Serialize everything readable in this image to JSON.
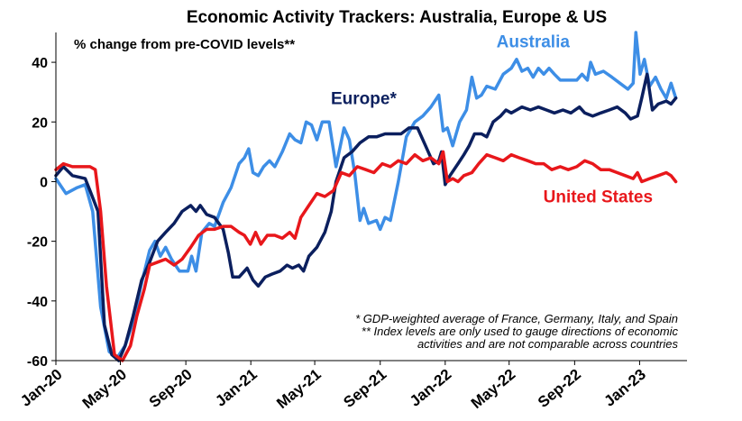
{
  "chart_data": {
    "type": "line",
    "title": "Economic Activity Trackers: Australia, Europe & US",
    "subtitle": "% change from pre-COVID levels**",
    "xlabel": "",
    "ylabel": "",
    "ylim": [
      -60,
      50
    ],
    "yticks": [
      40,
      20,
      0,
      -20,
      -40,
      -60
    ],
    "xlim": [
      "2020-01-01",
      "2023-03-31"
    ],
    "xticks": [
      "2020-01-01",
      "2020-05-01",
      "2020-09-01",
      "2021-01-01",
      "2021-05-01",
      "2021-09-01",
      "2022-01-01",
      "2022-05-01",
      "2022-09-01",
      "2023-01-01"
    ],
    "xtick_labels": [
      "Jan-20",
      "May-20",
      "Sep-20",
      "Jan-21",
      "May-21",
      "Sep-21",
      "Jan-22",
      "May-22",
      "Sep-22",
      "Jan-23"
    ],
    "grid": false,
    "legend": "inline labels",
    "notes": [
      "* GDP-weighted average of France, Germany, Italy, and Spain",
      "** Index levels are only used to gauge directions of economic",
      "activities and are not comparable across countries"
    ],
    "series": [
      {
        "name": "Australia",
        "color": "#3d8ee6",
        "label_at": [
          "2022-06-15",
          45
        ],
        "points": [
          [
            "2020-01-01",
            1
          ],
          [
            "2020-01-20",
            -4
          ],
          [
            "2020-02-10",
            -2
          ],
          [
            "2020-02-25",
            -1
          ],
          [
            "2020-03-10",
            -10
          ],
          [
            "2020-03-25",
            -42
          ],
          [
            "2020-04-10",
            -57
          ],
          [
            "2020-04-25",
            -59
          ],
          [
            "2020-05-10",
            -55
          ],
          [
            "2020-05-25",
            -47
          ],
          [
            "2020-06-10",
            -34
          ],
          [
            "2020-06-25",
            -23
          ],
          [
            "2020-07-05",
            -20
          ],
          [
            "2020-07-15",
            -25
          ],
          [
            "2020-07-25",
            -22
          ],
          [
            "2020-08-05",
            -26
          ],
          [
            "2020-08-20",
            -30
          ],
          [
            "2020-09-05",
            -30
          ],
          [
            "2020-09-12",
            -25
          ],
          [
            "2020-09-20",
            -30
          ],
          [
            "2020-10-01",
            -17
          ],
          [
            "2020-10-15",
            -14
          ],
          [
            "2020-10-25",
            -15
          ],
          [
            "2020-11-10",
            -7
          ],
          [
            "2020-11-25",
            -2
          ],
          [
            "2020-12-10",
            6
          ],
          [
            "2020-12-20",
            8
          ],
          [
            "2020-12-28",
            11
          ],
          [
            "2021-01-05",
            3
          ],
          [
            "2021-01-15",
            2
          ],
          [
            "2021-01-25",
            5
          ],
          [
            "2021-02-05",
            7
          ],
          [
            "2021-02-15",
            5
          ],
          [
            "2021-03-01",
            10
          ],
          [
            "2021-03-15",
            16
          ],
          [
            "2021-03-25",
            14
          ],
          [
            "2021-04-05",
            13
          ],
          [
            "2021-04-15",
            20
          ],
          [
            "2021-04-25",
            19
          ],
          [
            "2021-05-05",
            14
          ],
          [
            "2021-05-15",
            20
          ],
          [
            "2021-05-28",
            20
          ],
          [
            "2021-06-10",
            5
          ],
          [
            "2021-06-25",
            18
          ],
          [
            "2021-07-05",
            14
          ],
          [
            "2021-07-15",
            3
          ],
          [
            "2021-07-25",
            -13
          ],
          [
            "2021-08-01",
            -9
          ],
          [
            "2021-08-10",
            -14
          ],
          [
            "2021-08-25",
            -13
          ],
          [
            "2021-09-01",
            -16
          ],
          [
            "2021-09-10",
            -12
          ],
          [
            "2021-09-20",
            -13
          ],
          [
            "2021-10-05",
            0
          ],
          [
            "2021-10-20",
            15
          ],
          [
            "2021-11-05",
            20
          ],
          [
            "2021-11-20",
            22
          ],
          [
            "2021-12-05",
            25
          ],
          [
            "2021-12-20",
            29
          ],
          [
            "2021-12-28",
            17
          ],
          [
            "2022-01-05",
            18
          ],
          [
            "2022-01-15",
            12
          ],
          [
            "2022-01-28",
            20
          ],
          [
            "2022-02-10",
            24
          ],
          [
            "2022-02-20",
            35
          ],
          [
            "2022-03-01",
            28
          ],
          [
            "2022-03-10",
            29
          ],
          [
            "2022-03-20",
            32
          ],
          [
            "2022-04-05",
            31
          ],
          [
            "2022-04-20",
            36
          ],
          [
            "2022-05-05",
            38
          ],
          [
            "2022-05-15",
            41
          ],
          [
            "2022-05-25",
            37
          ],
          [
            "2022-06-05",
            38
          ],
          [
            "2022-06-15",
            35
          ],
          [
            "2022-06-25",
            38
          ],
          [
            "2022-07-05",
            36
          ],
          [
            "2022-07-15",
            38
          ],
          [
            "2022-07-25",
            36
          ],
          [
            "2022-08-05",
            34
          ],
          [
            "2022-08-20",
            34
          ],
          [
            "2022-09-05",
            34
          ],
          [
            "2022-09-15",
            36
          ],
          [
            "2022-09-25",
            34
          ],
          [
            "2022-10-01",
            40
          ],
          [
            "2022-10-10",
            36
          ],
          [
            "2022-10-25",
            37
          ],
          [
            "2022-11-10",
            35
          ],
          [
            "2022-11-25",
            33
          ],
          [
            "2022-12-10",
            31
          ],
          [
            "2022-12-20",
            33
          ],
          [
            "2022-12-25",
            50
          ],
          [
            "2023-01-02",
            36
          ],
          [
            "2023-01-10",
            41
          ],
          [
            "2023-01-20",
            32
          ],
          [
            "2023-01-31",
            35
          ],
          [
            "2023-02-10",
            31
          ],
          [
            "2023-02-20",
            28
          ],
          [
            "2023-03-01",
            33
          ],
          [
            "2023-03-10",
            28
          ]
        ]
      },
      {
        "name": "Europe*",
        "color": "#0b1f5e",
        "label_at": [
          "2021-08-01",
          26
        ],
        "points": [
          [
            "2020-01-01",
            2
          ],
          [
            "2020-01-15",
            5
          ],
          [
            "2020-02-01",
            2
          ],
          [
            "2020-02-25",
            1
          ],
          [
            "2020-03-05",
            -3
          ],
          [
            "2020-03-20",
            -10
          ],
          [
            "2020-04-01",
            -48
          ],
          [
            "2020-04-15",
            -58
          ],
          [
            "2020-04-28",
            -60
          ],
          [
            "2020-05-10",
            -55
          ],
          [
            "2020-05-25",
            -45
          ],
          [
            "2020-06-10",
            -33
          ],
          [
            "2020-06-25",
            -27
          ],
          [
            "2020-07-10",
            -20
          ],
          [
            "2020-07-25",
            -17
          ],
          [
            "2020-08-10",
            -14
          ],
          [
            "2020-08-25",
            -10
          ],
          [
            "2020-09-10",
            -8
          ],
          [
            "2020-09-20",
            -10
          ],
          [
            "2020-09-28",
            -8
          ],
          [
            "2020-10-10",
            -11
          ],
          [
            "2020-10-25",
            -12
          ],
          [
            "2020-11-10",
            -16
          ],
          [
            "2020-11-20",
            -24
          ],
          [
            "2020-11-28",
            -32
          ],
          [
            "2020-12-10",
            -32
          ],
          [
            "2020-12-25",
            -29
          ],
          [
            "2021-01-05",
            -33
          ],
          [
            "2021-01-15",
            -35
          ],
          [
            "2021-01-28",
            -32
          ],
          [
            "2021-02-10",
            -31
          ],
          [
            "2021-02-25",
            -30
          ],
          [
            "2021-03-10",
            -28
          ],
          [
            "2021-03-20",
            -29
          ],
          [
            "2021-04-01",
            -28
          ],
          [
            "2021-04-10",
            -30
          ],
          [
            "2021-04-20",
            -25
          ],
          [
            "2021-05-05",
            -22
          ],
          [
            "2021-05-20",
            -17
          ],
          [
            "2021-06-01",
            -10
          ],
          [
            "2021-06-10",
            0
          ],
          [
            "2021-06-25",
            8
          ],
          [
            "2021-07-10",
            10
          ],
          [
            "2021-07-25",
            13
          ],
          [
            "2021-08-10",
            15
          ],
          [
            "2021-08-25",
            15
          ],
          [
            "2021-09-10",
            16
          ],
          [
            "2021-09-25",
            16
          ],
          [
            "2021-10-10",
            16
          ],
          [
            "2021-10-25",
            18
          ],
          [
            "2021-11-10",
            18
          ],
          [
            "2021-11-25",
            12
          ],
          [
            "2021-12-10",
            6
          ],
          [
            "2021-12-20",
            7
          ],
          [
            "2021-12-25",
            10
          ],
          [
            "2022-01-01",
            -1
          ],
          [
            "2022-01-10",
            2
          ],
          [
            "2022-01-25",
            6
          ],
          [
            "2022-02-05",
            9
          ],
          [
            "2022-02-15",
            12
          ],
          [
            "2022-02-25",
            16
          ],
          [
            "2022-03-10",
            16
          ],
          [
            "2022-03-20",
            15
          ],
          [
            "2022-04-01",
            20
          ],
          [
            "2022-04-15",
            22
          ],
          [
            "2022-04-25",
            24
          ],
          [
            "2022-05-05",
            23
          ],
          [
            "2022-05-15",
            24
          ],
          [
            "2022-05-25",
            25
          ],
          [
            "2022-06-10",
            24
          ],
          [
            "2022-06-25",
            25
          ],
          [
            "2022-07-10",
            24
          ],
          [
            "2022-07-25",
            23
          ],
          [
            "2022-08-10",
            24
          ],
          [
            "2022-08-25",
            23
          ],
          [
            "2022-09-10",
            25
          ],
          [
            "2022-09-20",
            23
          ],
          [
            "2022-10-05",
            22
          ],
          [
            "2022-10-20",
            23
          ],
          [
            "2022-11-05",
            24
          ],
          [
            "2022-11-20",
            25
          ],
          [
            "2022-12-05",
            23
          ],
          [
            "2022-12-15",
            21
          ],
          [
            "2022-12-28",
            22
          ],
          [
            "2023-01-05",
            28
          ],
          [
            "2023-01-15",
            36
          ],
          [
            "2023-01-25",
            24
          ],
          [
            "2023-02-05",
            26
          ],
          [
            "2023-02-20",
            27
          ],
          [
            "2023-03-01",
            26
          ],
          [
            "2023-03-10",
            28
          ]
        ]
      },
      {
        "name": "United States",
        "color": "#e8171b",
        "label_at": [
          "2022-10-15",
          -7
        ],
        "points": [
          [
            "2020-01-01",
            4
          ],
          [
            "2020-01-15",
            6
          ],
          [
            "2020-02-01",
            5
          ],
          [
            "2020-02-20",
            5
          ],
          [
            "2020-03-05",
            5
          ],
          [
            "2020-03-15",
            4
          ],
          [
            "2020-03-25",
            -10
          ],
          [
            "2020-04-05",
            -35
          ],
          [
            "2020-04-20",
            -58
          ],
          [
            "2020-05-05",
            -60
          ],
          [
            "2020-05-20",
            -55
          ],
          [
            "2020-06-01",
            -45
          ],
          [
            "2020-06-15",
            -36
          ],
          [
            "2020-06-25",
            -28
          ],
          [
            "2020-07-10",
            -27
          ],
          [
            "2020-07-25",
            -26
          ],
          [
            "2020-08-10",
            -28
          ],
          [
            "2020-08-25",
            -26
          ],
          [
            "2020-09-10",
            -22
          ],
          [
            "2020-09-25",
            -18
          ],
          [
            "2020-10-10",
            -16
          ],
          [
            "2020-10-25",
            -16
          ],
          [
            "2020-11-10",
            -15
          ],
          [
            "2020-11-25",
            -15
          ],
          [
            "2020-12-10",
            -17
          ],
          [
            "2020-12-20",
            -18
          ],
          [
            "2020-12-31",
            -21
          ],
          [
            "2021-01-10",
            -17
          ],
          [
            "2021-01-20",
            -21
          ],
          [
            "2021-02-01",
            -18
          ],
          [
            "2021-02-15",
            -18
          ],
          [
            "2021-03-01",
            -19
          ],
          [
            "2021-03-15",
            -17
          ],
          [
            "2021-03-25",
            -19
          ],
          [
            "2021-04-05",
            -12
          ],
          [
            "2021-04-20",
            -8
          ],
          [
            "2021-05-05",
            -4
          ],
          [
            "2021-05-20",
            -5
          ],
          [
            "2021-06-05",
            -3
          ],
          [
            "2021-06-20",
            3
          ],
          [
            "2021-07-05",
            2
          ],
          [
            "2021-07-20",
            5
          ],
          [
            "2021-08-05",
            4
          ],
          [
            "2021-08-20",
            3
          ],
          [
            "2021-09-05",
            6
          ],
          [
            "2021-09-20",
            5
          ],
          [
            "2021-10-05",
            7
          ],
          [
            "2021-10-20",
            6
          ],
          [
            "2021-11-05",
            9
          ],
          [
            "2021-11-20",
            7
          ],
          [
            "2021-12-05",
            8
          ],
          [
            "2021-12-20",
            6
          ],
          [
            "2021-12-28",
            10
          ],
          [
            "2022-01-05",
            0
          ],
          [
            "2022-01-15",
            1
          ],
          [
            "2022-01-25",
            0
          ],
          [
            "2022-02-05",
            2
          ],
          [
            "2022-02-20",
            3
          ],
          [
            "2022-03-05",
            6
          ],
          [
            "2022-03-20",
            9
          ],
          [
            "2022-04-05",
            8
          ],
          [
            "2022-04-20",
            7
          ],
          [
            "2022-05-05",
            9
          ],
          [
            "2022-05-20",
            8
          ],
          [
            "2022-06-05",
            7
          ],
          [
            "2022-06-20",
            6
          ],
          [
            "2022-07-05",
            6
          ],
          [
            "2022-07-20",
            4
          ],
          [
            "2022-08-05",
            5
          ],
          [
            "2022-08-20",
            4
          ],
          [
            "2022-09-05",
            5
          ],
          [
            "2022-09-20",
            7
          ],
          [
            "2022-10-05",
            6
          ],
          [
            "2022-10-20",
            4
          ],
          [
            "2022-11-05",
            4
          ],
          [
            "2022-11-20",
            3
          ],
          [
            "2022-12-05",
            2
          ],
          [
            "2022-12-20",
            1
          ],
          [
            "2022-12-28",
            3
          ],
          [
            "2023-01-05",
            0
          ],
          [
            "2023-01-20",
            1
          ],
          [
            "2023-02-05",
            2
          ],
          [
            "2023-02-20",
            3
          ],
          [
            "2023-03-01",
            2
          ],
          [
            "2023-03-10",
            0
          ]
        ]
      }
    ]
  }
}
